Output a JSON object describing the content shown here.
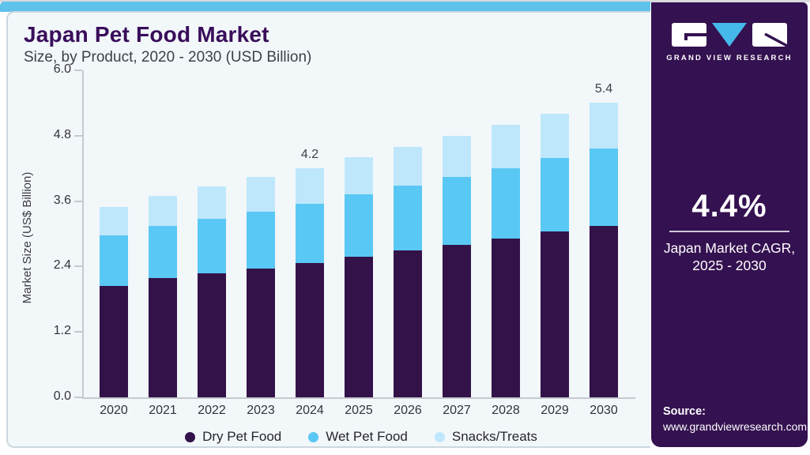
{
  "header": {
    "title": "Japan Pet Food Market",
    "subtitle": "Size, by Product, 2020 - 2030 (USD Billion)"
  },
  "chart_data": {
    "type": "bar",
    "stacked": true,
    "title": "Japan Pet Food Market Size, by Product, 2020 - 2030 (USD Billion)",
    "xlabel": "",
    "ylabel": "Market Size (US$ Billion)",
    "ylim": [
      0.0,
      6.0
    ],
    "yticks": [
      0.0,
      1.2,
      2.4,
      3.6,
      4.8,
      6.0
    ],
    "grid": false,
    "legend_position": "bottom",
    "categories": [
      "2020",
      "2021",
      "2022",
      "2023",
      "2024",
      "2025",
      "2026",
      "2027",
      "2028",
      "2029",
      "2030"
    ],
    "series": [
      {
        "name": "Dry Pet Food",
        "color": "#331249",
        "values": [
          2.05,
          2.19,
          2.28,
          2.36,
          2.46,
          2.58,
          2.69,
          2.8,
          2.92,
          3.04,
          3.15
        ]
      },
      {
        "name": "Wet Pet Food",
        "color": "#5ac8f4",
        "values": [
          0.92,
          0.95,
          0.99,
          1.05,
          1.09,
          1.14,
          1.19,
          1.24,
          1.29,
          1.35,
          1.42
        ]
      },
      {
        "name": "Snacks/Treats",
        "color": "#bfe7fb",
        "values": [
          0.53,
          0.56,
          0.6,
          0.63,
          0.65,
          0.68,
          0.72,
          0.76,
          0.79,
          0.82,
          0.83
        ]
      }
    ],
    "totals": [
      3.5,
      3.7,
      3.87,
      4.04,
      4.2,
      4.4,
      4.6,
      4.8,
      5.0,
      5.21,
      5.4
    ],
    "data_labels": [
      {
        "category": "2024",
        "text": "4.2"
      },
      {
        "category": "2030",
        "text": "5.4"
      }
    ]
  },
  "sidebar": {
    "brand": "GRAND VIEW RESEARCH",
    "cagr_value": "4.4%",
    "cagr_label_line1": "Japan Market CAGR,",
    "cagr_label_line2": "2025 - 2030",
    "source_label": "Source:",
    "source_url": "www.grandviewresearch.com"
  },
  "colors": {
    "accent_stripe": "#5ec2ec",
    "panel_background": "#f2f7fa",
    "panel_border": "#cbd7df",
    "sidebar_background": "#341150",
    "title_text": "#390d5a",
    "logo_blue": "#45b9e9",
    "dry_pet_food": "#331249",
    "wet_pet_food": "#5ac8f4",
    "snacks_treats": "#bfe7fb"
  }
}
